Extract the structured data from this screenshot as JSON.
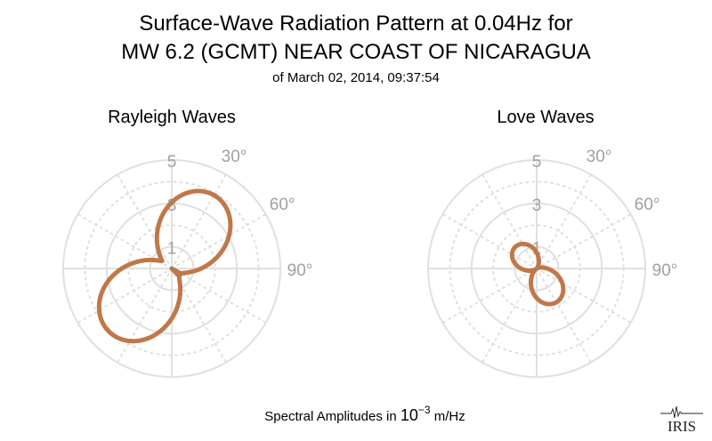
{
  "header": {
    "title_line1": "Surface-Wave Radiation Pattern at 0.04Hz for",
    "title_line2": "MW 6.2 (GCMT) NEAR COAST OF NICARAGUA",
    "subtitle": "of March 02, 2014, 09:37:54"
  },
  "footer": {
    "xlabel_prefix": "Spectral Amplitudes in ",
    "xlabel_base": "10",
    "xlabel_exp": "−3",
    "xlabel_unit": " m/Hz",
    "logo_text": "IRIS"
  },
  "colors": {
    "pattern": "#c0784a",
    "grid": "#e0e0e0",
    "tick": "#a0a0a0"
  },
  "chart_data": [
    {
      "type": "polar",
      "title": "Rayleigh Waves",
      "r_max": 5,
      "r_ticks": [
        1,
        3,
        5
      ],
      "r_tick_labels": [
        "1",
        "3",
        "5"
      ],
      "angle_ticks": [
        30,
        60,
        90
      ],
      "angle_tick_labels": [
        "30°",
        "60°",
        "90°"
      ],
      "radial_grid_angles": [
        0,
        30,
        60,
        90,
        120,
        150,
        180,
        210,
        240,
        270,
        300,
        330
      ],
      "lobes": [
        {
          "peak_azimuth_deg": 30,
          "peak_amplitude": 3.9,
          "base_amplitude": 0.5
        },
        {
          "peak_azimuth_deg": 225,
          "peak_amplitude": 4.1,
          "base_amplitude": 0.5
        }
      ]
    },
    {
      "type": "polar",
      "title": "Love Waves",
      "r_max": 5,
      "r_ticks": [
        1,
        3,
        5
      ],
      "r_tick_labels": [
        "1",
        "3",
        "5"
      ],
      "angle_ticks": [
        30,
        60,
        90
      ],
      "angle_tick_labels": [
        "30°",
        "60°",
        "90°"
      ],
      "radial_grid_angles": [
        0,
        30,
        60,
        90,
        120,
        150,
        180,
        210,
        240,
        270,
        300,
        330
      ],
      "lobes": [
        {
          "peak_azimuth_deg": 315,
          "peak_amplitude": 1.4,
          "base_amplitude": 0.05
        },
        {
          "peak_azimuth_deg": 150,
          "peak_amplitude": 1.8,
          "base_amplitude": 0.05
        }
      ]
    }
  ]
}
